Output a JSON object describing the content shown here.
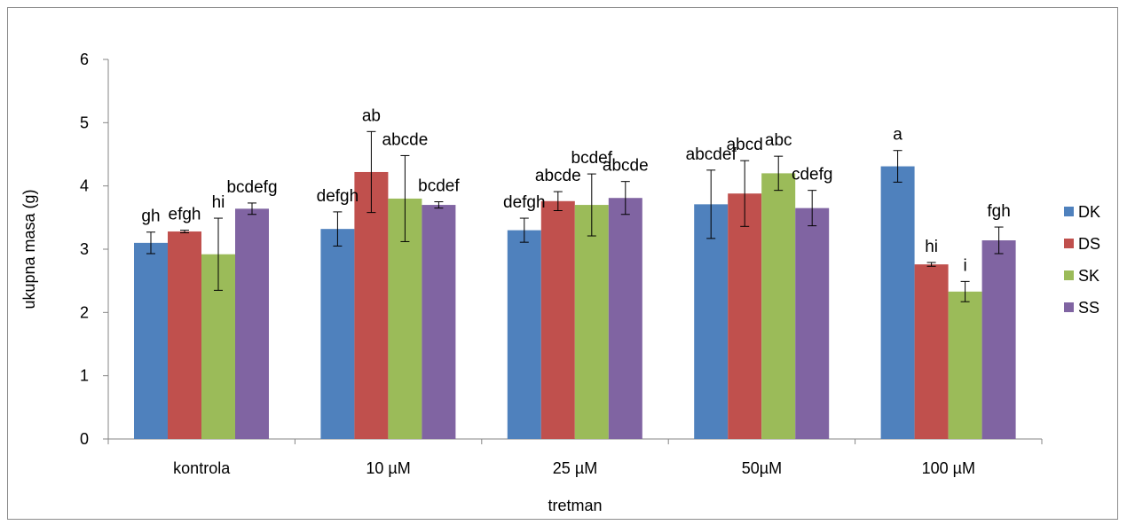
{
  "chart_data": {
    "type": "bar",
    "title": "",
    "xlabel": "tretman",
    "ylabel": "ukupna masa (g)",
    "ylim": [
      0,
      6
    ],
    "yticks": [
      0,
      1,
      2,
      3,
      4,
      5,
      6
    ],
    "grid": false,
    "legend_position": "right",
    "categories": [
      "kontrola",
      "10 µM",
      "25 µM",
      "50µM",
      "100 µM"
    ],
    "series": [
      {
        "name": "DK",
        "color": "#4F81BD",
        "values": [
          3.1,
          3.32,
          3.3,
          3.71,
          4.31
        ],
        "errors": [
          0.17,
          0.27,
          0.19,
          0.54,
          0.25
        ],
        "labels": [
          "gh",
          "defgh",
          "defgh",
          "abcdef",
          "a"
        ]
      },
      {
        "name": "DS",
        "color": "#C0504D",
        "values": [
          3.28,
          4.22,
          3.76,
          3.88,
          2.76
        ],
        "errors": [
          0.02,
          0.64,
          0.15,
          0.52,
          0.03
        ],
        "labels": [
          "efgh",
          "ab",
          "abcde",
          "abcd",
          "hi"
        ]
      },
      {
        "name": "SK",
        "color": "#9BBB59",
        "values": [
          2.92,
          3.8,
          3.7,
          4.2,
          2.33
        ],
        "errors": [
          0.57,
          0.68,
          0.49,
          0.27,
          0.16
        ],
        "labels": [
          "hi",
          "abcde",
          "bcdef",
          "abc",
          "i"
        ]
      },
      {
        "name": "SS",
        "color": "#8064A2",
        "values": [
          3.64,
          3.7,
          3.81,
          3.65,
          3.14
        ],
        "errors": [
          0.09,
          0.05,
          0.26,
          0.28,
          0.21
        ],
        "labels": [
          "bcdefg",
          "bcdef",
          "abcde",
          "cdefg",
          "fgh"
        ]
      }
    ]
  }
}
